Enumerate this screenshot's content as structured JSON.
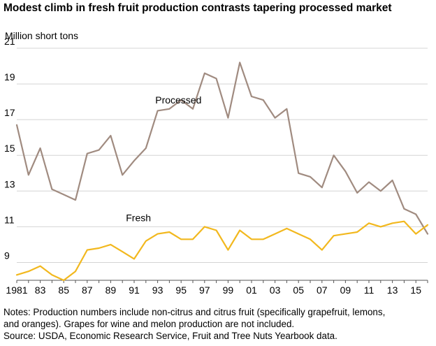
{
  "chart_data": {
    "type": "line",
    "title": "Modest climb in fresh fruit production contrasts tapering processed market",
    "ylabel": "Million short tons",
    "xlabel": "",
    "ylim": [
      8,
      21
    ],
    "yticks": [
      9,
      11,
      13,
      15,
      17,
      19,
      21
    ],
    "xlim": [
      1981,
      2016
    ],
    "xtick_labels": [
      "1981",
      "83",
      "85",
      "87",
      "89",
      "91",
      "93",
      "95",
      "97",
      "99",
      "01",
      "03",
      "05",
      "07",
      "09",
      "11",
      "13",
      "15"
    ],
    "xtick_years": [
      1981,
      1983,
      1985,
      1987,
      1989,
      1991,
      1993,
      1995,
      1997,
      1999,
      2001,
      2003,
      2005,
      2007,
      2009,
      2011,
      2013,
      2015
    ],
    "grid": true,
    "legend": "inline labels",
    "colors": {
      "processed": "#a08b80",
      "fresh": "#f2b81e",
      "grid": "#d4d4d4",
      "axis": "#555555"
    },
    "x": [
      1981,
      1982,
      1983,
      1984,
      1985,
      1986,
      1987,
      1988,
      1989,
      1990,
      1991,
      1992,
      1993,
      1994,
      1995,
      1996,
      1997,
      1998,
      1999,
      2000,
      2001,
      2002,
      2003,
      2004,
      2005,
      2006,
      2007,
      2008,
      2009,
      2010,
      2011,
      2012,
      2013,
      2014,
      2015,
      2016
    ],
    "series": [
      {
        "name": "Processed",
        "color": "#a08b80",
        "values": [
          16.7,
          13.9,
          15.4,
          13.1,
          12.8,
          12.5,
          15.1,
          15.3,
          16.1,
          13.9,
          14.7,
          15.4,
          17.5,
          17.6,
          18.1,
          17.6,
          19.6,
          19.3,
          17.1,
          20.2,
          18.3,
          18.1,
          17.1,
          17.6,
          14.0,
          13.8,
          13.2,
          15.0,
          14.1,
          12.9,
          13.5,
          13.0,
          13.6,
          12.0,
          11.7,
          10.6
        ],
        "label": "Processed",
        "label_anchor": {
          "x": 1992.8,
          "y": 17.9
        }
      },
      {
        "name": "Fresh",
        "color": "#f2b81e",
        "values": [
          8.3,
          8.5,
          8.8,
          8.3,
          8.0,
          8.5,
          9.7,
          9.8,
          10.0,
          9.6,
          9.2,
          10.2,
          10.6,
          10.7,
          10.3,
          10.3,
          11.0,
          10.8,
          9.7,
          10.8,
          10.3,
          10.3,
          10.6,
          10.9,
          10.6,
          10.3,
          9.7,
          10.5,
          10.6,
          10.7,
          11.2,
          11.0,
          11.2,
          11.3,
          10.6,
          11.1
        ],
        "label": "Fresh",
        "label_anchor": {
          "x": 1990.3,
          "y": 11.3
        }
      }
    ]
  },
  "notes": {
    "line1": "Notes: Production numbers include non-citrus and citrus fruit (specifically grapefruit, lemons,",
    "line2": "and oranges). Grapes for wine and melon production are not included.",
    "line3": "Source: USDA, Economic Research Service, Fruit and Tree Nuts Yearbook data."
  }
}
